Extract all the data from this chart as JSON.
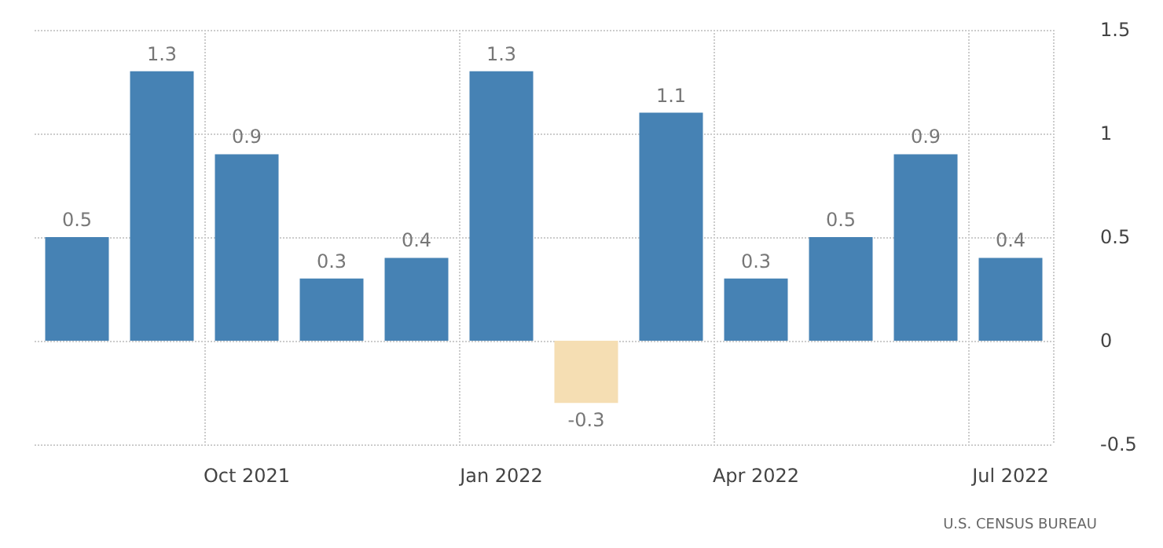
{
  "chart_data": {
    "type": "bar",
    "categories": [
      null,
      null,
      "Oct 2021",
      null,
      null,
      "Jan 2022",
      null,
      null,
      "Apr 2022",
      null,
      null,
      "Jul 2022"
    ],
    "values": [
      0.5,
      1.3,
      0.9,
      0.3,
      0.4,
      1.3,
      -0.3,
      1.1,
      0.3,
      0.5,
      0.9,
      0.4
    ],
    "colors": [
      "#4682b4",
      "#4682b4",
      "#4682b4",
      "#4682b4",
      "#4682b4",
      "#4682b4",
      "#f5deb3",
      "#4682b4",
      "#4682b4",
      "#4682b4",
      "#4682b4",
      "#4682b4"
    ],
    "ylim": [
      -0.5,
      1.5
    ],
    "yticks": [
      -0.5,
      0,
      0.5,
      1,
      1.5
    ],
    "grid": true,
    "data_labels": true,
    "annotations": [
      "U.S. CENSUS BUREAU"
    ]
  }
}
